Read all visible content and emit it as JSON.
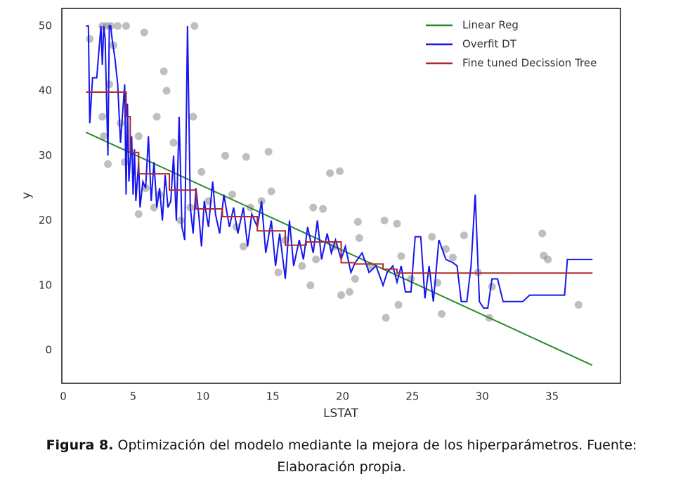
{
  "chart_data": {
    "type": "line",
    "xlabel": "LSTAT",
    "ylabel": "y",
    "xlim": [
      0,
      40
    ],
    "ylim": [
      -5.1,
      52.7
    ],
    "xticks": [
      0,
      5,
      10,
      15,
      20,
      25,
      30,
      35
    ],
    "yticks": [
      0,
      10,
      20,
      30,
      40,
      50
    ],
    "grid": false,
    "legend": "upper right",
    "series": [
      {
        "type": "scatter",
        "color": "#808080",
        "x": [
          2.9,
          3.2,
          3.5,
          4.0,
          4.6,
          9.5,
          5.9,
          2.0,
          3.7,
          7.3,
          3.4,
          7.5,
          9.4,
          2.9,
          4.2,
          3.0,
          6.8,
          8.0,
          5.5,
          3.3,
          4.5,
          11.7,
          13.2,
          14.8,
          10.0,
          19.2,
          19.9,
          6.0,
          6.6,
          5.5,
          7.0,
          8.5,
          9.2,
          10.5,
          12.2,
          13.5,
          14.3,
          15.0,
          12.5,
          13.0,
          15.5,
          16.0,
          17.2,
          18.0,
          18.7,
          17.8,
          18.2,
          19.5,
          20.0,
          20.6,
          21.2,
          21.3,
          21.0,
          22.1,
          23.1,
          24.0,
          23.2,
          24.1,
          24.3,
          25.0,
          26.5,
          26.9,
          27.2,
          27.5,
          28.0,
          28.8,
          29.8,
          30.6,
          30.8,
          34.4,
          34.5,
          34.8,
          37.0
        ],
        "values": [
          50,
          50,
          50,
          50,
          50,
          50,
          49,
          48,
          47,
          43,
          41,
          40,
          36,
          36,
          35,
          33,
          36,
          32,
          33,
          28.7,
          29,
          30,
          29.8,
          30.6,
          27.5,
          27.3,
          27.6,
          25,
          22,
          21,
          24,
          20,
          22,
          23,
          24,
          22,
          23,
          24.5,
          19,
          16,
          12,
          17,
          13,
          22,
          21.8,
          10,
          14,
          16,
          8.5,
          9,
          19.8,
          17.3,
          11,
          13,
          20,
          19.5,
          5,
          7,
          14.5,
          11,
          17.5,
          10.4,
          5.6,
          15.6,
          14.3,
          17.7,
          12,
          5,
          9.8,
          18,
          14.6,
          14,
          7
        ]
      },
      {
        "type": "line",
        "name": "Linear Reg",
        "color": "#2a8a2a",
        "x": [
          1.73,
          37.97
        ],
        "values": [
          33.6,
          -2.3
        ]
      },
      {
        "type": "line",
        "name": "Overfit DT",
        "color": "#1515f0",
        "x": [
          1.73,
          1.9,
          2.0,
          2.2,
          2.5,
          2.8,
          2.9,
          3.0,
          3.1,
          3.3,
          3.4,
          3.5,
          3.6,
          3.8,
          4.0,
          4.2,
          4.4,
          4.5,
          4.6,
          4.7,
          4.8,
          5.0,
          5.1,
          5.2,
          5.3,
          5.5,
          5.6,
          5.8,
          6.0,
          6.2,
          6.4,
          6.6,
          6.8,
          7.0,
          7.2,
          7.4,
          7.6,
          7.8,
          8.0,
          8.2,
          8.4,
          8.6,
          8.8,
          9.0,
          9.2,
          9.4,
          9.6,
          9.8,
          10.0,
          10.2,
          10.5,
          10.8,
          11.0,
          11.3,
          11.6,
          12.0,
          12.3,
          12.6,
          13.0,
          13.3,
          13.6,
          14.0,
          14.3,
          14.6,
          15.0,
          15.3,
          15.6,
          16.0,
          16.3,
          16.6,
          17.0,
          17.3,
          17.6,
          18.0,
          18.3,
          18.6,
          19.0,
          19.3,
          19.6,
          20.0,
          20.3,
          20.7,
          21.0,
          21.5,
          22.0,
          22.5,
          23.0,
          23.3,
          23.7,
          24.0,
          24.3,
          24.6,
          25.0,
          25.3,
          25.7,
          26.0,
          26.3,
          26.6,
          27.0,
          27.5,
          28.0,
          28.3,
          28.6,
          29.0,
          29.3,
          29.6,
          29.9,
          30.2,
          30.5,
          30.8,
          31.2,
          31.6,
          32.0,
          33.0,
          33.5,
          34.0,
          35.0,
          36.0,
          36.2,
          37.0,
          38.0
        ],
        "values": [
          50,
          50,
          35,
          42,
          42,
          50,
          44,
          50,
          48,
          30,
          50,
          50,
          48,
          45,
          41,
          32,
          38,
          41,
          24,
          38,
          26,
          33,
          24,
          31,
          23,
          29,
          22,
          26,
          25,
          33,
          23,
          29,
          22,
          25,
          20,
          27,
          22,
          23,
          30,
          20,
          36,
          19,
          17,
          50,
          22,
          18,
          25,
          21,
          16,
          23,
          19,
          26,
          21,
          18,
          24,
          19,
          22,
          18,
          22,
          16,
          21,
          19,
          23,
          15,
          20,
          13,
          18,
          11,
          20,
          13,
          17,
          14,
          19,
          15,
          20,
          14,
          18,
          15,
          17,
          14,
          16,
          12,
          13.5,
          15,
          12,
          13,
          10,
          12,
          13,
          10.5,
          13,
          9,
          9,
          17.5,
          17.5,
          8,
          13,
          7.5,
          17,
          14,
          13.5,
          13,
          7.5,
          7.5,
          13,
          24,
          7.5,
          6.5,
          6.5,
          11,
          11,
          7.5,
          7.5,
          7.5,
          8.5,
          8.5,
          8.5,
          8.5,
          14,
          14,
          14
        ]
      },
      {
        "type": "line",
        "name": "Fine tuned Decission Tree",
        "color": "#b02828",
        "x": [
          1.73,
          4.6,
          4.6,
          4.9,
          4.9,
          5.5,
          5.5,
          7.7,
          7.7,
          9.6,
          9.6,
          11.5,
          11.5,
          14.0,
          14.0,
          16.0,
          16.0,
          17.5,
          17.5,
          20.0,
          20.0,
          21.0,
          21.0,
          23.0,
          23.0,
          24.0,
          24.0,
          38.0
        ],
        "values": [
          39.8,
          39.8,
          36,
          36,
          30.5,
          30.5,
          27.2,
          27.2,
          24.7,
          24.7,
          21.8,
          21.8,
          20.6,
          20.6,
          18.4,
          18.4,
          16.2,
          16.2,
          16.7,
          16.7,
          13.5,
          13.5,
          13.3,
          13.3,
          12.5,
          12.5,
          11.9,
          11.9
        ]
      }
    ]
  },
  "caption": {
    "label": "Figura 8.",
    "text": "Optimización del modelo mediante la mejora de los hiperparámetros. Fuente: Elaboración propia."
  }
}
